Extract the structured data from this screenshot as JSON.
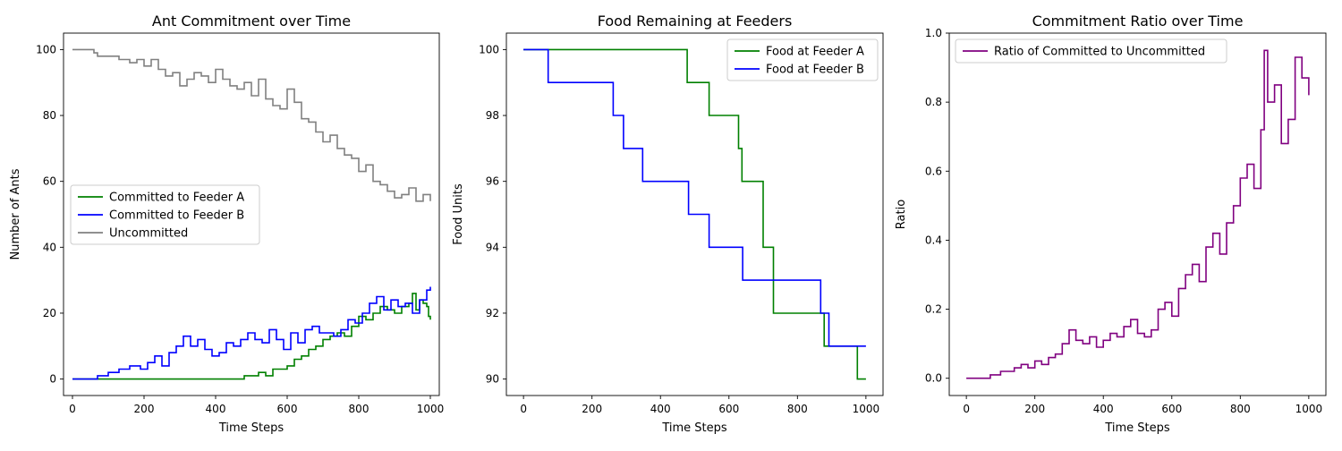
{
  "chart_data": [
    {
      "type": "line",
      "title": "Ant Commitment over Time",
      "xlabel": "Time Steps",
      "ylabel": "Number of Ants",
      "xlim": [
        -25,
        1025
      ],
      "ylim": [
        -5,
        105
      ],
      "xticks": [
        0,
        200,
        400,
        600,
        800,
        1000
      ],
      "yticks": [
        0,
        20,
        40,
        60,
        80,
        100
      ],
      "legend_position": "center-left",
      "grid": false,
      "series": [
        {
          "name": "Committed to Feeder A",
          "color": "#008000",
          "step": true,
          "x": [
            0,
            480,
            520,
            540,
            560,
            600,
            620,
            640,
            660,
            680,
            700,
            720,
            740,
            760,
            780,
            800,
            820,
            840,
            860,
            880,
            900,
            920,
            940,
            950,
            960,
            970,
            980,
            990,
            995,
            1000
          ],
          "y": [
            0,
            1,
            2,
            1,
            3,
            4,
            6,
            7,
            9,
            10,
            12,
            13,
            14,
            13,
            16,
            19,
            18,
            20,
            22,
            21,
            20,
            22,
            23,
            26,
            21,
            24,
            23,
            22,
            19,
            18
          ]
        },
        {
          "name": "Committed to Feeder B",
          "color": "#0000ff",
          "step": true,
          "x": [
            0,
            70,
            100,
            130,
            160,
            190,
            210,
            230,
            250,
            270,
            290,
            310,
            330,
            350,
            370,
            390,
            410,
            430,
            450,
            470,
            490,
            510,
            530,
            550,
            570,
            590,
            610,
            630,
            650,
            670,
            690,
            710,
            730,
            750,
            770,
            790,
            810,
            830,
            850,
            870,
            890,
            910,
            930,
            950,
            970,
            990,
            1000
          ],
          "y": [
            0,
            1,
            2,
            3,
            4,
            3,
            5,
            7,
            4,
            8,
            10,
            13,
            10,
            12,
            9,
            7,
            8,
            11,
            10,
            12,
            14,
            12,
            11,
            15,
            12,
            9,
            14,
            11,
            15,
            16,
            14,
            14,
            13,
            15,
            18,
            17,
            20,
            23,
            25,
            21,
            24,
            22,
            23,
            20,
            24,
            27,
            28
          ]
        },
        {
          "name": "Uncommitted",
          "color": "#808080",
          "step": true,
          "x": [
            0,
            60,
            70,
            100,
            130,
            160,
            180,
            200,
            220,
            240,
            260,
            280,
            300,
            320,
            340,
            360,
            380,
            400,
            420,
            440,
            460,
            480,
            500,
            520,
            540,
            560,
            580,
            600,
            620,
            640,
            660,
            680,
            700,
            720,
            740,
            760,
            780,
            800,
            820,
            840,
            860,
            880,
            900,
            920,
            940,
            960,
            980,
            1000
          ],
          "y": [
            100,
            99,
            98,
            98,
            97,
            96,
            97,
            95,
            97,
            94,
            92,
            93,
            89,
            91,
            93,
            92,
            90,
            94,
            91,
            89,
            88,
            90,
            86,
            91,
            85,
            83,
            82,
            88,
            84,
            79,
            78,
            75,
            72,
            74,
            70,
            68,
            67,
            63,
            65,
            60,
            59,
            57,
            55,
            56,
            58,
            54,
            56,
            54
          ]
        }
      ]
    },
    {
      "type": "line",
      "title": "Food Remaining at Feeders",
      "xlabel": "Time Steps",
      "ylabel": "Food Units",
      "xlim": [
        -50,
        1050
      ],
      "ylim": [
        89.5,
        100.5
      ],
      "xticks": [
        0,
        200,
        400,
        600,
        800,
        1000
      ],
      "yticks": [
        90,
        92,
        94,
        96,
        98,
        100
      ],
      "legend_position": "top-right",
      "grid": false,
      "series": [
        {
          "name": "Food at Feeder A",
          "color": "#008000",
          "step": true,
          "x": [
            0,
            478,
            542,
            628,
            638,
            700,
            730,
            878,
            975,
            1000
          ],
          "y": [
            100,
            99,
            98,
            97,
            96,
            94,
            92,
            91,
            90,
            90
          ]
        },
        {
          "name": "Food at Feeder B",
          "color": "#0000ff",
          "step": true,
          "x": [
            0,
            72,
            262,
            292,
            348,
            482,
            542,
            640,
            868,
            892,
            1000
          ],
          "y": [
            100,
            99,
            98,
            97,
            96,
            95,
            94,
            93,
            92,
            91,
            91
          ]
        }
      ]
    },
    {
      "type": "line",
      "title": "Commitment Ratio over Time",
      "xlabel": "Time Steps",
      "ylabel": "Ratio",
      "xlim": [
        -50,
        1050
      ],
      "ylim": [
        -0.05,
        1.0
      ],
      "xticks": [
        0,
        200,
        400,
        600,
        800,
        1000
      ],
      "yticks": [
        0.0,
        0.2,
        0.4,
        0.6,
        0.8,
        1.0
      ],
      "legend_position": "top-left",
      "grid": false,
      "series": [
        {
          "name": "Ratio of Committed to Uncommitted",
          "color": "#800080",
          "step": true,
          "x": [
            0,
            70,
            100,
            140,
            160,
            180,
            200,
            220,
            240,
            260,
            280,
            300,
            320,
            340,
            360,
            380,
            400,
            420,
            440,
            460,
            480,
            500,
            520,
            540,
            560,
            580,
            600,
            620,
            640,
            660,
            680,
            700,
            720,
            740,
            760,
            780,
            800,
            820,
            840,
            860,
            870,
            880,
            900,
            920,
            940,
            960,
            980,
            1000
          ],
          "y": [
            0,
            0.01,
            0.02,
            0.03,
            0.04,
            0.03,
            0.05,
            0.04,
            0.06,
            0.07,
            0.1,
            0.14,
            0.11,
            0.1,
            0.12,
            0.09,
            0.11,
            0.13,
            0.12,
            0.15,
            0.17,
            0.13,
            0.12,
            0.14,
            0.2,
            0.22,
            0.18,
            0.26,
            0.3,
            0.33,
            0.28,
            0.38,
            0.42,
            0.36,
            0.45,
            0.5,
            0.58,
            0.62,
            0.55,
            0.72,
            0.95,
            0.8,
            0.85,
            0.68,
            0.75,
            0.93,
            0.87,
            0.82
          ]
        }
      ]
    }
  ]
}
